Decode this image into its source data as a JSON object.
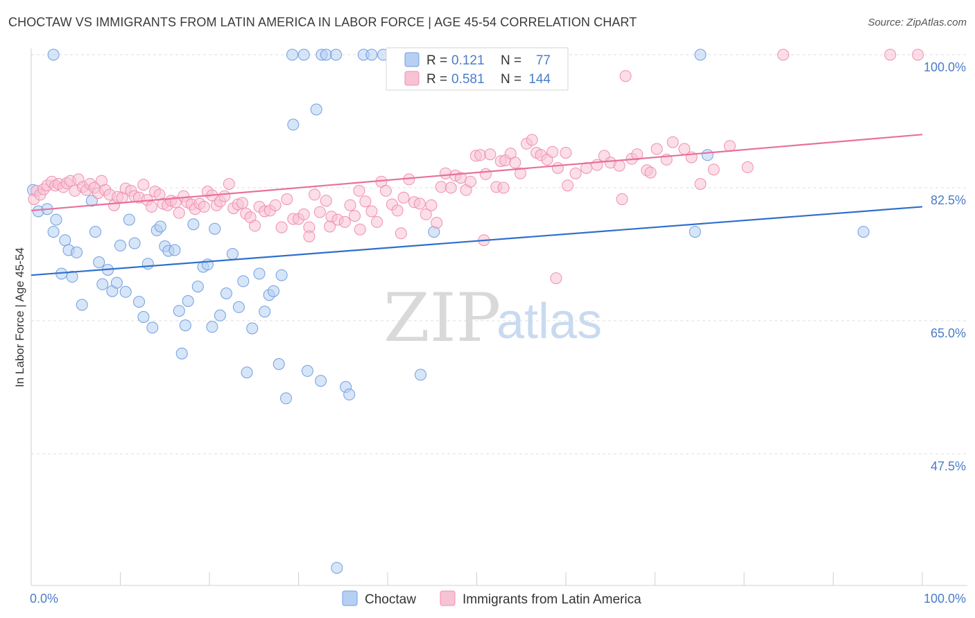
{
  "header": {
    "title": "CHOCTAW VS IMMIGRANTS FROM LATIN AMERICA IN LABOR FORCE | AGE 45-54 CORRELATION CHART",
    "source": "Source: ZipAtlas.com"
  },
  "watermark": {
    "zip": "ZIP",
    "atlas": "atlas"
  },
  "chart_data": {
    "type": "scatter",
    "ylabel": "In Labor Force | Age 45-54",
    "xlim": [
      0,
      100
    ],
    "ylim": [
      30,
      101.5
    ],
    "x_tick_labels": [
      {
        "value": 0,
        "label": "0.0%"
      },
      {
        "value": 100,
        "label": "100.0%"
      }
    ],
    "y_ticks": [
      {
        "value": 100,
        "label": "100.0%"
      },
      {
        "value": 82.5,
        "label": "82.5%"
      },
      {
        "value": 65,
        "label": "65.0%"
      },
      {
        "value": 47.5,
        "label": "47.5%"
      }
    ],
    "grid": true,
    "legend_stats": [
      {
        "r_label": "R =",
        "r": "0.121",
        "n_label": "N =",
        "n": "77",
        "color": "#6f9fe0"
      },
      {
        "r_label": "R =",
        "r": "0.581",
        "n_label": "N =",
        "n": "144",
        "color": "#ef8fb0"
      }
    ],
    "series": [
      {
        "name": "Choctaw",
        "color": "#6f9fe0",
        "fill": "#b7cff3",
        "trend": [
          [
            0,
            71.0
          ],
          [
            100,
            80.0
          ]
        ],
        "points": [
          [
            0.2,
            82.2
          ],
          [
            0.8,
            79.4
          ],
          [
            1.8,
            79.7
          ],
          [
            2.5,
            76.7
          ],
          [
            2.8,
            78.3
          ],
          [
            3.4,
            71.2
          ],
          [
            3.8,
            75.6
          ],
          [
            4.2,
            74.3
          ],
          [
            4.6,
            70.8
          ],
          [
            5.1,
            74.0
          ],
          [
            5.7,
            67.1
          ],
          [
            6.8,
            80.8
          ],
          [
            7.2,
            76.7
          ],
          [
            7.6,
            72.7
          ],
          [
            8.0,
            69.8
          ],
          [
            8.6,
            71.7
          ],
          [
            9.1,
            68.9
          ],
          [
            9.6,
            70.0
          ],
          [
            10.0,
            74.9
          ],
          [
            10.6,
            68.8
          ],
          [
            11.0,
            78.3
          ],
          [
            11.6,
            75.2
          ],
          [
            12.1,
            67.5
          ],
          [
            12.6,
            65.5
          ],
          [
            13.1,
            72.5
          ],
          [
            13.6,
            64.1
          ],
          [
            14.1,
            76.9
          ],
          [
            14.5,
            77.4
          ],
          [
            15.0,
            74.8
          ],
          [
            15.4,
            74.2
          ],
          [
            16.1,
            74.3
          ],
          [
            16.6,
            66.3
          ],
          [
            16.9,
            60.7
          ],
          [
            17.3,
            64.4
          ],
          [
            17.6,
            67.6
          ],
          [
            18.2,
            77.7
          ],
          [
            18.7,
            69.5
          ],
          [
            19.3,
            72.1
          ],
          [
            19.8,
            72.4
          ],
          [
            20.3,
            64.2
          ],
          [
            20.6,
            77.1
          ],
          [
            21.2,
            65.7
          ],
          [
            21.9,
            68.6
          ],
          [
            22.6,
            73.8
          ],
          [
            23.3,
            66.8
          ],
          [
            23.8,
            70.2
          ],
          [
            24.2,
            58.2
          ],
          [
            24.8,
            64.0
          ],
          [
            25.6,
            71.2
          ],
          [
            26.2,
            66.2
          ],
          [
            26.7,
            68.4
          ],
          [
            27.2,
            68.9
          ],
          [
            28.1,
            71.0
          ],
          [
            27.8,
            59.3
          ],
          [
            29.3,
            100
          ],
          [
            30.6,
            100
          ],
          [
            32.6,
            100
          ],
          [
            33.1,
            100
          ],
          [
            34.2,
            100
          ],
          [
            31.0,
            58.4
          ],
          [
            28.6,
            54.8
          ],
          [
            32.0,
            92.8
          ],
          [
            29.4,
            90.8
          ],
          [
            32.5,
            57.1
          ],
          [
            35.3,
            56.3
          ],
          [
            35.7,
            55.3
          ],
          [
            37.3,
            100
          ],
          [
            38.2,
            100
          ],
          [
            39.5,
            100
          ],
          [
            43.7,
            57.9
          ],
          [
            45.2,
            76.7
          ],
          [
            74.5,
            76.7
          ],
          [
            75.1,
            100
          ],
          [
            75.9,
            86.8
          ],
          [
            93.4,
            76.7
          ],
          [
            2.5,
            100
          ],
          [
            34.3,
            32.5
          ]
        ]
      },
      {
        "name": "Immigrants from Latin America",
        "color": "#ef8fb0",
        "fill": "#f7c2d4",
        "trend": [
          [
            0,
            79.5
          ],
          [
            100,
            89.5
          ]
        ],
        "points": [
          [
            0.3,
            81.0
          ],
          [
            0.6,
            82.1
          ],
          [
            1.0,
            81.6
          ],
          [
            1.4,
            82.3
          ],
          [
            1.8,
            82.8
          ],
          [
            2.3,
            83.3
          ],
          [
            2.7,
            82.8
          ],
          [
            3.1,
            83.0
          ],
          [
            3.6,
            82.6
          ],
          [
            4.0,
            83.1
          ],
          [
            4.4,
            83.4
          ],
          [
            4.9,
            82.1
          ],
          [
            5.3,
            83.6
          ],
          [
            5.8,
            82.6
          ],
          [
            6.2,
            82.2
          ],
          [
            6.6,
            83.0
          ],
          [
            7.1,
            82.5
          ],
          [
            7.5,
            81.8
          ],
          [
            7.9,
            83.4
          ],
          [
            8.3,
            82.2
          ],
          [
            8.8,
            81.6
          ],
          [
            9.3,
            80.2
          ],
          [
            9.7,
            81.3
          ],
          [
            10.2,
            81.2
          ],
          [
            10.6,
            82.4
          ],
          [
            11.2,
            82.1
          ],
          [
            11.6,
            81.4
          ],
          [
            12.1,
            81.2
          ],
          [
            12.6,
            82.9
          ],
          [
            13.0,
            80.9
          ],
          [
            13.5,
            80.0
          ],
          [
            13.9,
            82.0
          ],
          [
            14.4,
            81.6
          ],
          [
            14.8,
            80.4
          ],
          [
            15.3,
            80.2
          ],
          [
            15.7,
            80.8
          ],
          [
            16.2,
            80.6
          ],
          [
            16.6,
            79.2
          ],
          [
            17.1,
            81.4
          ],
          [
            17.5,
            80.6
          ],
          [
            18.0,
            80.3
          ],
          [
            18.4,
            79.7
          ],
          [
            18.9,
            80.4
          ],
          [
            19.4,
            80.0
          ],
          [
            19.8,
            82.0
          ],
          [
            20.3,
            81.5
          ],
          [
            20.8,
            80.2
          ],
          [
            21.2,
            80.7
          ],
          [
            21.7,
            81.4
          ],
          [
            22.2,
            83.0
          ],
          [
            22.7,
            79.8
          ],
          [
            23.2,
            80.3
          ],
          [
            23.7,
            80.5
          ],
          [
            24.1,
            79.1
          ],
          [
            24.6,
            78.6
          ],
          [
            25.1,
            77.5
          ],
          [
            25.6,
            80.0
          ],
          [
            26.2,
            79.4
          ],
          [
            26.8,
            79.5
          ],
          [
            27.4,
            80.2
          ],
          [
            28.1,
            77.3
          ],
          [
            28.7,
            81.0
          ],
          [
            29.4,
            78.4
          ],
          [
            30.0,
            78.4
          ],
          [
            30.6,
            79.0
          ],
          [
            31.2,
            77.3
          ],
          [
            31.8,
            81.6
          ],
          [
            32.4,
            79.3
          ],
          [
            33.1,
            80.8
          ],
          [
            33.7,
            78.7
          ],
          [
            34.4,
            78.3
          ],
          [
            35.2,
            78.0
          ],
          [
            35.8,
            80.2
          ],
          [
            36.3,
            78.8
          ],
          [
            36.8,
            82.1
          ],
          [
            37.5,
            80.7
          ],
          [
            38.2,
            79.4
          ],
          [
            38.8,
            78.0
          ],
          [
            39.3,
            83.3
          ],
          [
            39.8,
            82.1
          ],
          [
            40.5,
            80.3
          ],
          [
            41.1,
            79.5
          ],
          [
            41.8,
            81.2
          ],
          [
            42.4,
            83.6
          ],
          [
            43.0,
            80.6
          ],
          [
            43.6,
            80.4
          ],
          [
            44.3,
            79.0
          ],
          [
            44.9,
            80.2
          ],
          [
            45.5,
            77.9
          ],
          [
            46.0,
            82.6
          ],
          [
            46.5,
            84.4
          ],
          [
            47.1,
            82.5
          ],
          [
            47.6,
            84.1
          ],
          [
            48.2,
            83.8
          ],
          [
            48.8,
            82.2
          ],
          [
            49.3,
            83.3
          ],
          [
            49.9,
            86.7
          ],
          [
            50.4,
            86.8
          ],
          [
            51.0,
            84.3
          ],
          [
            51.5,
            86.9
          ],
          [
            52.2,
            82.6
          ],
          [
            52.7,
            86.0
          ],
          [
            53.2,
            86.1
          ],
          [
            53.8,
            87.0
          ],
          [
            54.3,
            85.8
          ],
          [
            54.9,
            84.4
          ],
          [
            55.6,
            88.3
          ],
          [
            56.2,
            88.8
          ],
          [
            56.7,
            87.1
          ],
          [
            57.2,
            86.8
          ],
          [
            57.9,
            86.2
          ],
          [
            58.5,
            87.2
          ],
          [
            59.1,
            85.1
          ],
          [
            60.0,
            87.1
          ],
          [
            61.1,
            84.4
          ],
          [
            62.3,
            85.1
          ],
          [
            63.5,
            85.5
          ],
          [
            64.3,
            86.7
          ],
          [
            65.0,
            85.8
          ],
          [
            66.0,
            85.4
          ],
          [
            67.4,
            86.3
          ],
          [
            68.0,
            86.9
          ],
          [
            69.1,
            84.8
          ],
          [
            70.2,
            87.6
          ],
          [
            71.3,
            86.2
          ],
          [
            72.0,
            88.5
          ],
          [
            73.3,
            87.6
          ],
          [
            74.1,
            86.5
          ],
          [
            75.1,
            83.0
          ],
          [
            76.6,
            84.9
          ],
          [
            78.4,
            88.0
          ],
          [
            80.4,
            85.2
          ],
          [
            31.2,
            76.1
          ],
          [
            50.8,
            75.6
          ],
          [
            58.9,
            70.6
          ],
          [
            66.7,
            97.2
          ],
          [
            84.4,
            100
          ],
          [
            96.4,
            100
          ],
          [
            99.5,
            100
          ],
          [
            66.3,
            81.0
          ],
          [
            36.9,
            77.0
          ],
          [
            53.0,
            82.5
          ],
          [
            60.2,
            82.8
          ],
          [
            33.5,
            77.4
          ],
          [
            41.5,
            76.5
          ],
          [
            69.5,
            84.5
          ]
        ]
      }
    ]
  },
  "legend": {
    "items": [
      {
        "label": "Choctaw",
        "color": "#6f9fe0",
        "fill": "#b7cff3"
      },
      {
        "label": "Immigrants from Latin America",
        "color": "#ef8fb0",
        "fill": "#f7c2d4"
      }
    ]
  }
}
